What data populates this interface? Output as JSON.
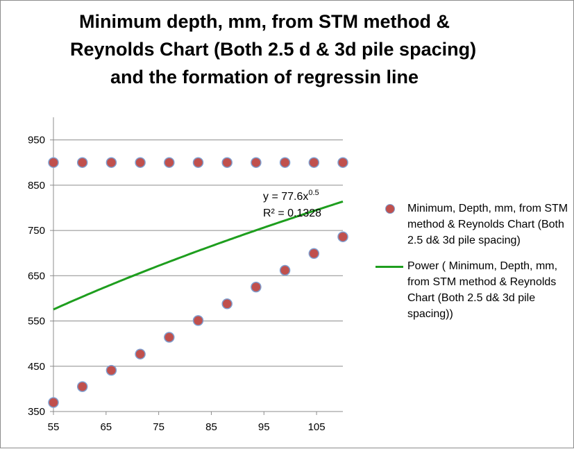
{
  "chart_data": {
    "type": "scatter",
    "title_lines": [
      "Minimum depth, mm, from STM method &",
      "Reynolds Chart (Both 2.5 d & 3d pile spacing)",
      "and the formation of regressin line"
    ],
    "xlim": [
      55,
      110
    ],
    "ylim": [
      350,
      1000
    ],
    "x_ticks": [
      "55",
      "65",
      "75",
      "85",
      "95",
      "105"
    ],
    "x_tick_values": [
      55,
      65,
      75,
      85,
      95,
      105
    ],
    "y_ticks": [
      "950",
      "850",
      "750",
      "650",
      "550",
      "450",
      "350"
    ],
    "y_tick_values": [
      950,
      850,
      750,
      650,
      550,
      450,
      350
    ],
    "grid": "horizontal",
    "legend_position": "right",
    "series": [
      {
        "name": "Minimum, Depth, mm, from STM method & Reynolds Chart (Both 2.5 d& 3d pile spacing)",
        "marker_color": "#c0504d",
        "marker_edge_color": "#7f9fd0",
        "points": [
          [
            55,
            900
          ],
          [
            60.5,
            900
          ],
          [
            66,
            900
          ],
          [
            71.5,
            900
          ],
          [
            77,
            900
          ],
          [
            82.5,
            900
          ],
          [
            88,
            900
          ],
          [
            93.5,
            900
          ],
          [
            99,
            900
          ],
          [
            104.5,
            900
          ],
          [
            110,
            900
          ],
          [
            55,
            370
          ],
          [
            60.5,
            405
          ],
          [
            66,
            441
          ],
          [
            71.5,
            477
          ],
          [
            77,
            514
          ],
          [
            82.5,
            551
          ],
          [
            88,
            588
          ],
          [
            93.5,
            625
          ],
          [
            99,
            662
          ],
          [
            104.5,
            699
          ],
          [
            110,
            736
          ]
        ]
      },
      {
        "name": "Power ( Minimum, Depth, mm, from STM method & Reynolds Chart (Both 2.5 d& 3d pile spacing))",
        "type": "line",
        "color": "#1e9e1e",
        "coefficient": 77.6,
        "exponent": 0.5
      }
    ],
    "annotations": {
      "equation_prefix": "y = 77.6x",
      "equation_exponent": "0.5",
      "r2_text": "R² = 0.1328"
    }
  }
}
